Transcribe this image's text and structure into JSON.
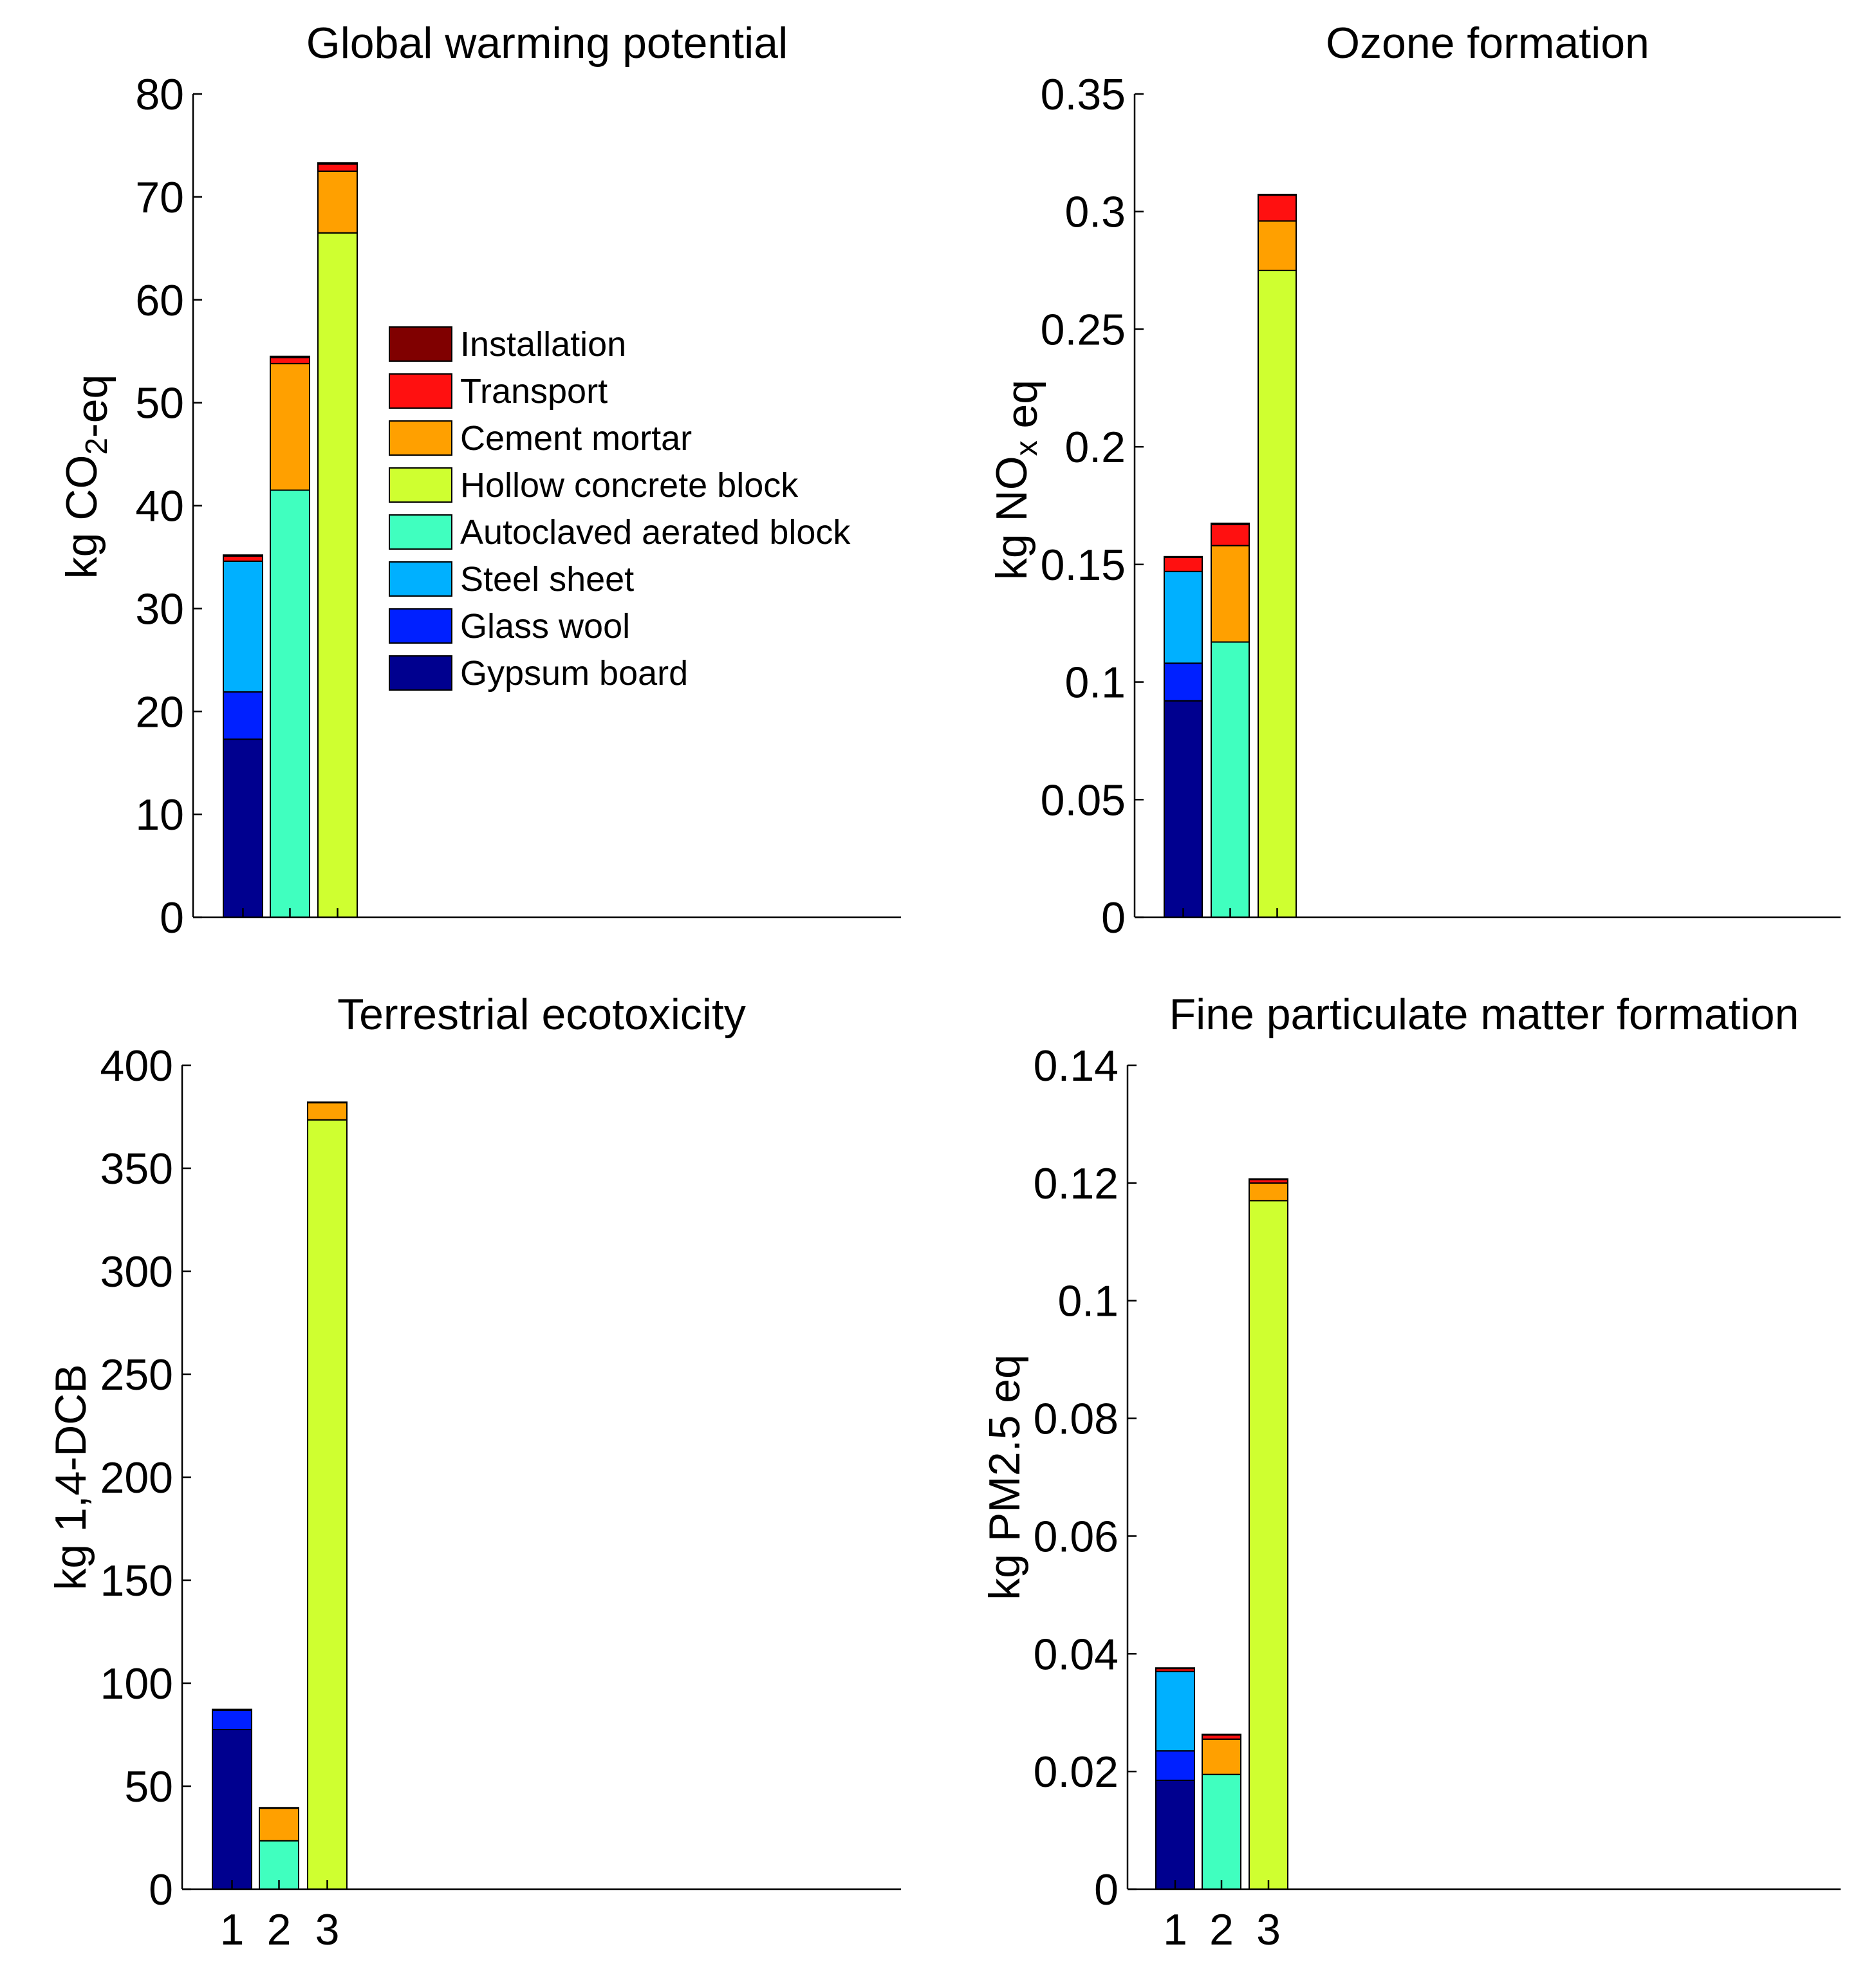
{
  "chart_data": [
    {
      "type": "stacked-bar",
      "title": "Global warming potential",
      "xlabel": "",
      "ylabel": "kg CO2-eq",
      "ylabel_parts": [
        {
          "text": "kg CO",
          "sub": false
        },
        {
          "text": "2",
          "sub": true
        },
        {
          "text": "-eq",
          "sub": false
        }
      ],
      "ylim": [
        0,
        80
      ],
      "yticks": [
        0,
        10,
        20,
        30,
        40,
        50,
        60,
        70,
        80
      ],
      "ytick_labels": [
        "0",
        "10",
        "20",
        "30",
        "40",
        "50",
        "60",
        "70",
        "80"
      ],
      "categories": [
        "1",
        "2",
        "3"
      ],
      "show_category_labels": false,
      "legend_position": "center-left",
      "series": [
        {
          "name": "Gypsum board",
          "values": [
            17.3,
            0,
            0
          ]
        },
        {
          "name": "Glass wool",
          "values": [
            4.6,
            0,
            0
          ]
        },
        {
          "name": "Steel sheet",
          "values": [
            12.7,
            0,
            0
          ]
        },
        {
          "name": "Autoclaved aerated block",
          "values": [
            0,
            41.5,
            0
          ]
        },
        {
          "name": "Hollow concrete block",
          "values": [
            0,
            0,
            66.5
          ]
        },
        {
          "name": "Cement mortar",
          "values": [
            0,
            12.3,
            6.0
          ]
        },
        {
          "name": "Transport",
          "values": [
            0.5,
            0.6,
            0.7
          ]
        },
        {
          "name": "Installation",
          "values": [
            0.1,
            0.1,
            0.1
          ]
        }
      ]
    },
    {
      "type": "stacked-bar",
      "title": "Ozone formation",
      "xlabel": "",
      "ylabel": "kg NOx eq",
      "ylabel_parts": [
        {
          "text": "kg NO",
          "sub": false
        },
        {
          "text": "x",
          "sub": true
        },
        {
          "text": " eq",
          "sub": false
        }
      ],
      "ylim": [
        0,
        0.35
      ],
      "yticks": [
        0,
        0.05,
        0.1,
        0.15,
        0.2,
        0.25,
        0.3,
        0.35
      ],
      "ytick_labels": [
        "0",
        "0.05",
        "0.1",
        "0.15",
        "0.2",
        "0.25",
        "0.3",
        "0.35"
      ],
      "categories": [
        "1",
        "2",
        "3"
      ],
      "show_category_labels": false,
      "series": [
        {
          "name": "Gypsum board",
          "values": [
            0.092,
            0,
            0
          ]
        },
        {
          "name": "Glass wool",
          "values": [
            0.016,
            0,
            0
          ]
        },
        {
          "name": "Steel sheet",
          "values": [
            0.039,
            0,
            0
          ]
        },
        {
          "name": "Autoclaved aerated block",
          "values": [
            0,
            0.117,
            0
          ]
        },
        {
          "name": "Hollow concrete block",
          "values": [
            0,
            0,
            0.275
          ]
        },
        {
          "name": "Cement mortar",
          "values": [
            0,
            0.041,
            0.021
          ]
        },
        {
          "name": "Transport",
          "values": [
            0.006,
            0.009,
            0.011
          ]
        },
        {
          "name": "Installation",
          "values": [
            0.0003,
            0.0005,
            0.0003
          ]
        }
      ]
    },
    {
      "type": "stacked-bar",
      "title": "Terrestrial ecotoxicity",
      "xlabel": "",
      "ylabel": "kg 1,4-DCB",
      "ylabel_parts": [
        {
          "text": "kg 1,4-DCB",
          "sub": false
        }
      ],
      "ylim": [
        0,
        400
      ],
      "yticks": [
        0,
        50,
        100,
        150,
        200,
        250,
        300,
        350,
        400
      ],
      "ytick_labels": [
        "0",
        "50",
        "100",
        "150",
        "200",
        "250",
        "300",
        "350",
        "400"
      ],
      "categories": [
        "1",
        "2",
        "3"
      ],
      "show_category_labels": true,
      "series": [
        {
          "name": "Gypsum board",
          "values": [
            77.5,
            0,
            0
          ]
        },
        {
          "name": "Glass wool",
          "values": [
            9.5,
            0,
            0
          ]
        },
        {
          "name": "Steel sheet",
          "values": [
            0.2,
            0,
            0
          ]
        },
        {
          "name": "Autoclaved aerated block",
          "values": [
            0,
            23.5,
            0
          ]
        },
        {
          "name": "Hollow concrete block",
          "values": [
            0,
            0,
            373.5
          ]
        },
        {
          "name": "Cement mortar",
          "values": [
            0,
            16.0,
            8.5
          ]
        },
        {
          "name": "Transport",
          "values": [
            0.1,
            0.1,
            0.1
          ]
        },
        {
          "name": "Installation",
          "values": [
            0,
            0,
            0
          ]
        }
      ]
    },
    {
      "type": "stacked-bar",
      "title": "Fine particulate matter formation",
      "xlabel": "",
      "ylabel": "kg PM2.5 eq",
      "ylabel_parts": [
        {
          "text": "kg PM2.5 eq",
          "sub": false
        }
      ],
      "ylim": [
        0,
        0.14
      ],
      "yticks": [
        0,
        0.02,
        0.04,
        0.06,
        0.08,
        0.1,
        0.12,
        0.14
      ],
      "ytick_labels": [
        "0",
        "0.02",
        "0.04",
        "0.06",
        "0.08",
        "0.1",
        "0.12",
        "0.14"
      ],
      "categories": [
        "1",
        "2",
        "3"
      ],
      "show_category_labels": true,
      "series": [
        {
          "name": "Gypsum board",
          "values": [
            0.0185,
            0,
            0
          ]
        },
        {
          "name": "Glass wool",
          "values": [
            0.005,
            0,
            0
          ]
        },
        {
          "name": "Steel sheet",
          "values": [
            0.0135,
            0,
            0
          ]
        },
        {
          "name": "Autoclaved aerated block",
          "values": [
            0,
            0.0195,
            0
          ]
        },
        {
          "name": "Hollow concrete block",
          "values": [
            0,
            0,
            0.117
          ]
        },
        {
          "name": "Cement mortar",
          "values": [
            0,
            0.006,
            0.003
          ]
        },
        {
          "name": "Transport",
          "values": [
            0.0005,
            0.0007,
            0.0006
          ]
        },
        {
          "name": "Installation",
          "values": [
            0.0001,
            0.0001,
            0.0001
          ]
        }
      ]
    }
  ],
  "legend": {
    "entries": [
      "Installation",
      "Transport",
      "Cement mortar",
      "Hollow concrete block",
      "Autoclaved aerated block",
      "Steel sheet",
      "Glass wool",
      "Gypsum board"
    ]
  },
  "colors": {
    "Gypsum board": "#00008f",
    "Glass wool": "#0020ff",
    "Steel sheet": "#00b0ff",
    "Autoclaved aerated block": "#40ffbf",
    "Hollow concrete block": "#cfff30",
    "Cement mortar": "#ffa000",
    "Transport": "#ff1010",
    "Installation": "#800000"
  }
}
